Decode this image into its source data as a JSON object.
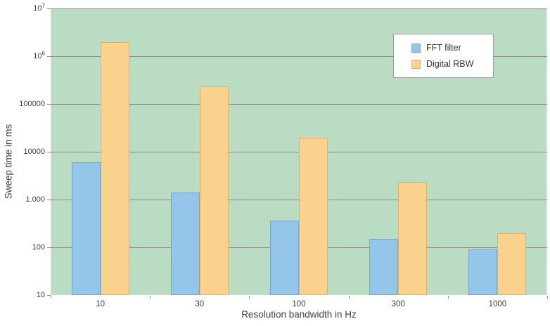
{
  "chart_data": {
    "type": "bar",
    "title": "",
    "xlabel": "Resolution bandwidth in Hz",
    "ylabel": "Sweep time in ms",
    "y_scale": "log",
    "ylim": [
      10,
      10000000
    ],
    "grid": true,
    "legend_position": "top-right",
    "categories": [
      "10",
      "30",
      "100",
      "300",
      "1000"
    ],
    "series": [
      {
        "name": "FFT filter",
        "color": "#93c6e9",
        "border_color": "#74a3cf",
        "values": [
          6000,
          1400,
          360,
          150,
          90
        ]
      },
      {
        "name": "Digital RBW",
        "color": "#fbd18e",
        "border_color": "#e0b169",
        "values": [
          2000000,
          230000,
          20000,
          2300,
          200
        ]
      }
    ],
    "y_ticks": [
      {
        "value": 10,
        "label": "10"
      },
      {
        "value": 100,
        "label": "100"
      },
      {
        "value": 1000,
        "label": "1.000"
      },
      {
        "value": 10000,
        "label": "10000"
      },
      {
        "value": 100000,
        "label": "100000"
      },
      {
        "value": 1000000,
        "label": "10",
        "sup": "6"
      },
      {
        "value": 10000000,
        "label": "10",
        "sup": "7"
      }
    ],
    "colors": {
      "plot_background": "#b9dcc3",
      "gridline": "#8b8b8b",
      "tick": "#8b8b8b",
      "text": "#3d3d3d",
      "legend_background": "#ffffff",
      "legend_border": "#9b9b9b"
    }
  }
}
